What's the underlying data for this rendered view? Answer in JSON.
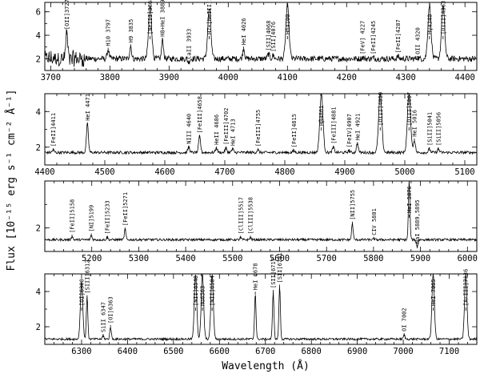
{
  "chart_data": {
    "type": "line",
    "ylabel": "Flux [10⁻¹⁵ erg s⁻¹ cm⁻² Å⁻¹]",
    "xlabel": "Wavelength (Å)",
    "panels": [
      {
        "xlim": [
          3690,
          4420
        ],
        "ylim": [
          1.0,
          6.8
        ],
        "xticks": [
          3700,
          3800,
          3900,
          4000,
          4100,
          4200,
          4300,
          4400
        ],
        "yticks": [
          2,
          4,
          6
        ],
        "continuum": 2.0,
        "noise": 0.25,
        "lines": [
          {
            "x": 3727,
            "label": "[OII]3727",
            "peak": 4.2
          },
          {
            "x": 3797,
            "label": "H10 3797",
            "peak": 2.8
          },
          {
            "x": 3835,
            "label": "H9 3835",
            "peak": 3.1
          },
          {
            "x": 3868,
            "label": "[NeIII]3868",
            "peak": 6.4
          },
          {
            "x": 3889,
            "label": "H8+HeI 3889",
            "peak": 3.6
          },
          {
            "x": 3933,
            "label": "CaII 3933",
            "peak": 1.7
          },
          {
            "x": 3968,
            "label": "H7+[NeIII]3968",
            "peak": 6.3
          },
          {
            "x": 4026,
            "label": "HeI 4026",
            "peak": 2.9
          },
          {
            "x": 4068,
            "label": "[SII]4068",
            "peak": 2.4
          },
          {
            "x": 4076,
            "label": "[SII]4076",
            "peak": 2.3
          },
          {
            "x": 4100,
            "label": "Hδ4100",
            "peak": 6.5
          },
          {
            "x": 4227,
            "label": "[FeV] 4227",
            "peak": 2.1
          },
          {
            "x": 4245,
            "label": "[FeII]4245",
            "peak": 2.1
          },
          {
            "x": 4287,
            "label": "[FeII]4287",
            "peak": 2.2
          },
          {
            "x": 4320,
            "label": "OII 4320",
            "peak": 2.1
          },
          {
            "x": 4340,
            "label": "Hγ4340",
            "peak": 6.6
          },
          {
            "x": 4363,
            "label": "[OIII]4363",
            "peak": 6.5
          }
        ]
      },
      {
        "xlim": [
          4400,
          5120
        ],
        "ylim": [
          1.0,
          5.0
        ],
        "xticks": [
          4400,
          4500,
          4600,
          4700,
          4800,
          4900,
          5000,
          5100
        ],
        "yticks": [
          2,
          4
        ],
        "continuum": 1.7,
        "noise": 0.08,
        "lines": [
          {
            "x": 4414,
            "label": "[FeII]4411",
            "peak": 1.85
          },
          {
            "x": 4471,
            "label": "HeI 4471",
            "peak": 3.3
          },
          {
            "x": 4640,
            "label": "NIII 4640",
            "peak": 2.0
          },
          {
            "x": 4658,
            "label": "[FeIII]4658",
            "peak": 2.6
          },
          {
            "x": 4686,
            "label": "HeII 4686",
            "peak": 1.95
          },
          {
            "x": 4702,
            "label": "[FeIII]4702",
            "peak": 1.95
          },
          {
            "x": 4713,
            "label": "HeI 4713",
            "peak": 1.9
          },
          {
            "x": 4755,
            "label": "[FeIII]4755",
            "peak": 1.85
          },
          {
            "x": 4815,
            "label": "[FeII]4815",
            "peak": 1.8
          },
          {
            "x": 4861,
            "label": "Hβ4861",
            "peak": 5.0
          },
          {
            "x": 4881,
            "label": "[FeIII]4881",
            "peak": 2.0
          },
          {
            "x": 4907,
            "label": "[FeIV]4907",
            "peak": 1.8
          },
          {
            "x": 4921,
            "label": "HeI 4921",
            "peak": 2.2
          },
          {
            "x": 4959,
            "label": "[OIII]4959",
            "peak": 5.0
          },
          {
            "x": 5007,
            "label": "[OIII]5007",
            "peak": 5.0
          },
          {
            "x": 5016,
            "label": "HeI 5016",
            "peak": 2.4
          },
          {
            "x": 5041,
            "label": "[SiII]5041",
            "peak": 1.9
          },
          {
            "x": 5056,
            "label": "[SiII]5056",
            "peak": 1.9
          }
        ]
      },
      {
        "xlim": [
          5100,
          6020
        ],
        "ylim": [
          1.0,
          4.0
        ],
        "xticks": [
          5200,
          5300,
          5400,
          5500,
          5600,
          5700,
          5800,
          5900,
          6000
        ],
        "yticks": [
          2
        ],
        "continuum": 1.5,
        "noise": 0.05,
        "lines": [
          {
            "x": 5158,
            "label": "[FeII]5158",
            "peak": 1.65
          },
          {
            "x": 5199,
            "label": "[NI]5199",
            "peak": 1.7
          },
          {
            "x": 5233,
            "label": "[FeII]5233",
            "peak": 1.6
          },
          {
            "x": 5271,
            "label": "[FeII]5271",
            "peak": 1.95
          },
          {
            "x": 5517,
            "label": "[ClIII]5517",
            "peak": 1.6
          },
          {
            "x": 5538,
            "label": "[ClIII]5538",
            "peak": 1.6
          },
          {
            "x": 5755,
            "label": "[NII]5755",
            "peak": 2.2
          },
          {
            "x": 5801,
            "label": "CIV 5801",
            "peak": 1.55
          },
          {
            "x": 5876,
            "label": "HeI 5876",
            "peak": 4.0
          },
          {
            "x": 5893,
            "label": "NaI 5889,5895",
            "peak": 1.2
          }
        ]
      },
      {
        "xlim": [
          6220,
          7160
        ],
        "ylim": [
          1.0,
          5.0
        ],
        "xticks": [
          6300,
          6400,
          6500,
          6600,
          6700,
          6800,
          6900,
          7000,
          7100
        ],
        "yticks": [
          2,
          4
        ],
        "continuum": 1.3,
        "noise": 0.06,
        "lines": [
          {
            "x": 6300,
            "label": "[OI]6300",
            "peak": 4.6
          },
          {
            "x": 6312,
            "label": "[SIII]6312",
            "peak": 3.7
          },
          {
            "x": 6347,
            "label": "SiII 6347",
            "peak": 1.5
          },
          {
            "x": 6363,
            "label": "[OI]6363",
            "peak": 2.0
          },
          {
            "x": 6548,
            "label": "[NII]6548",
            "peak": 5.0
          },
          {
            "x": 6563,
            "label": "Hα6563",
            "peak": 5.0
          },
          {
            "x": 6584,
            "label": "[NII]6584",
            "peak": 5.0
          },
          {
            "x": 6678,
            "label": "HeI 6678",
            "peak": 3.9
          },
          {
            "x": 6717,
            "label": "[SII]6717",
            "peak": 4.0
          },
          {
            "x": 6731,
            "label": "[SII]6731",
            "peak": 4.3
          },
          {
            "x": 7002,
            "label": "OI 7002",
            "peak": 1.55
          },
          {
            "x": 7065,
            "label": "HeI 7065",
            "peak": 5.0
          },
          {
            "x": 7136,
            "label": "[ArIII]7136",
            "peak": 5.0
          }
        ]
      }
    ]
  }
}
